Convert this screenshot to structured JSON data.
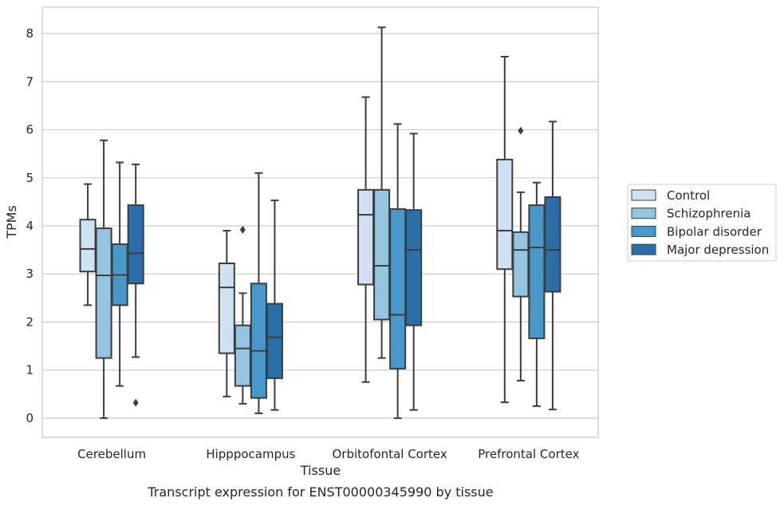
{
  "caption": "Transcript expression for ENST00000345990 by tissue",
  "chart_data": {
    "type": "boxplot",
    "xlabel": "Tissue",
    "ylabel": "TPMs",
    "ylim": [
      -0.4,
      8.55
    ],
    "yticks": [
      0,
      1,
      2,
      3,
      4,
      5,
      6,
      7,
      8
    ],
    "grid": "horizontal",
    "legend_position": "right",
    "categories": [
      "Cerebellum",
      "Hipppocampus",
      "Orbitofontal Cortex",
      "Prefrontal Cortex"
    ],
    "series": [
      {
        "name": "Control",
        "color": "#d0e1f2",
        "boxes": [
          {
            "whislo": 2.35,
            "q1": 3.05,
            "med": 3.52,
            "q3": 4.13,
            "whishi": 4.87,
            "fliers": []
          },
          {
            "whislo": 0.45,
            "q1": 1.35,
            "med": 2.72,
            "q3": 3.22,
            "whishi": 3.9,
            "fliers": []
          },
          {
            "whislo": 0.75,
            "q1": 2.78,
            "med": 4.23,
            "q3": 4.75,
            "whishi": 6.68,
            "fliers": []
          },
          {
            "whislo": 0.33,
            "q1": 3.1,
            "med": 3.9,
            "q3": 5.38,
            "whishi": 7.52,
            "fliers": []
          }
        ]
      },
      {
        "name": "Schizophrenia",
        "color": "#94c4df",
        "boxes": [
          {
            "whislo": 0.0,
            "q1": 1.25,
            "med": 2.97,
            "q3": 3.95,
            "whishi": 5.78,
            "fliers": []
          },
          {
            "whislo": 0.3,
            "q1": 0.67,
            "med": 1.45,
            "q3": 1.93,
            "whishi": 2.6,
            "fliers": [
              3.92
            ]
          },
          {
            "whislo": 1.25,
            "q1": 2.05,
            "med": 3.17,
            "q3": 4.75,
            "whishi": 8.13,
            "fliers": []
          },
          {
            "whislo": 0.78,
            "q1": 2.53,
            "med": 3.5,
            "q3": 3.87,
            "whishi": 4.7,
            "fliers": [
              5.98
            ]
          }
        ]
      },
      {
        "name": "Bipolar disorder",
        "color": "#4a98c9",
        "boxes": [
          {
            "whislo": 0.67,
            "q1": 2.35,
            "med": 2.98,
            "q3": 3.62,
            "whishi": 5.32,
            "fliers": []
          },
          {
            "whislo": 0.1,
            "q1": 0.42,
            "med": 1.4,
            "q3": 2.8,
            "whishi": 5.1,
            "fliers": []
          },
          {
            "whislo": 0.0,
            "q1": 1.03,
            "med": 2.15,
            "q3": 4.35,
            "whishi": 6.12,
            "fliers": []
          },
          {
            "whislo": 0.25,
            "q1": 1.66,
            "med": 3.55,
            "q3": 4.43,
            "whishi": 4.9,
            "fliers": []
          }
        ]
      },
      {
        "name": "Major depression",
        "color": "#2b6ea8",
        "boxes": [
          {
            "whislo": 1.27,
            "q1": 2.8,
            "med": 3.43,
            "q3": 4.43,
            "whishi": 5.28,
            "fliers": [
              0.32
            ]
          },
          {
            "whislo": 0.17,
            "q1": 0.83,
            "med": 1.68,
            "q3": 2.38,
            "whishi": 4.53,
            "fliers": []
          },
          {
            "whislo": 0.17,
            "q1": 1.93,
            "med": 3.5,
            "q3": 4.33,
            "whishi": 5.92,
            "fliers": []
          },
          {
            "whislo": 0.18,
            "q1": 2.63,
            "med": 3.5,
            "q3": 4.6,
            "whishi": 6.17,
            "fliers": []
          }
        ]
      }
    ]
  }
}
